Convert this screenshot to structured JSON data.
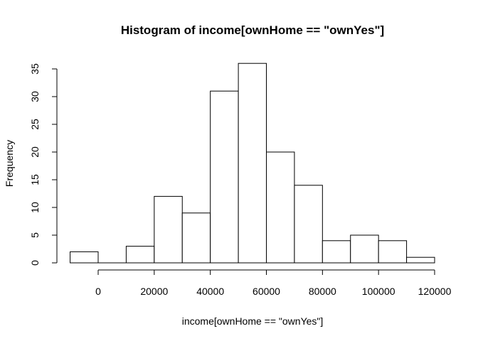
{
  "chart_data": {
    "type": "bar",
    "title": "Histogram of income[ownHome == \"ownYes\"]",
    "xlabel": "income[ownHome == \"ownYes\"]",
    "ylabel": "Frequency",
    "bins": [
      {
        "from": -10000,
        "to": 0,
        "count": 2
      },
      {
        "from": 0,
        "to": 10000,
        "count": 0
      },
      {
        "from": 10000,
        "to": 20000,
        "count": 3
      },
      {
        "from": 20000,
        "to": 30000,
        "count": 12
      },
      {
        "from": 30000,
        "to": 40000,
        "count": 9
      },
      {
        "from": 40000,
        "to": 50000,
        "count": 31
      },
      {
        "from": 50000,
        "to": 60000,
        "count": 36
      },
      {
        "from": 60000,
        "to": 70000,
        "count": 20
      },
      {
        "from": 70000,
        "to": 80000,
        "count": 14
      },
      {
        "from": 80000,
        "to": 90000,
        "count": 4
      },
      {
        "from": 90000,
        "to": 100000,
        "count": 5
      },
      {
        "from": 100000,
        "to": 110000,
        "count": 4
      },
      {
        "from": 110000,
        "to": 120000,
        "count": 1
      }
    ],
    "xticks": [
      0,
      20000,
      40000,
      60000,
      80000,
      100000,
      120000
    ],
    "yticks": [
      0,
      5,
      10,
      15,
      20,
      25,
      30,
      35
    ],
    "xlim": [
      -10000,
      120000
    ],
    "ylim": [
      0,
      36
    ],
    "grid": false,
    "bar_fill": "#ffffff",
    "bar_stroke": "#000000"
  }
}
